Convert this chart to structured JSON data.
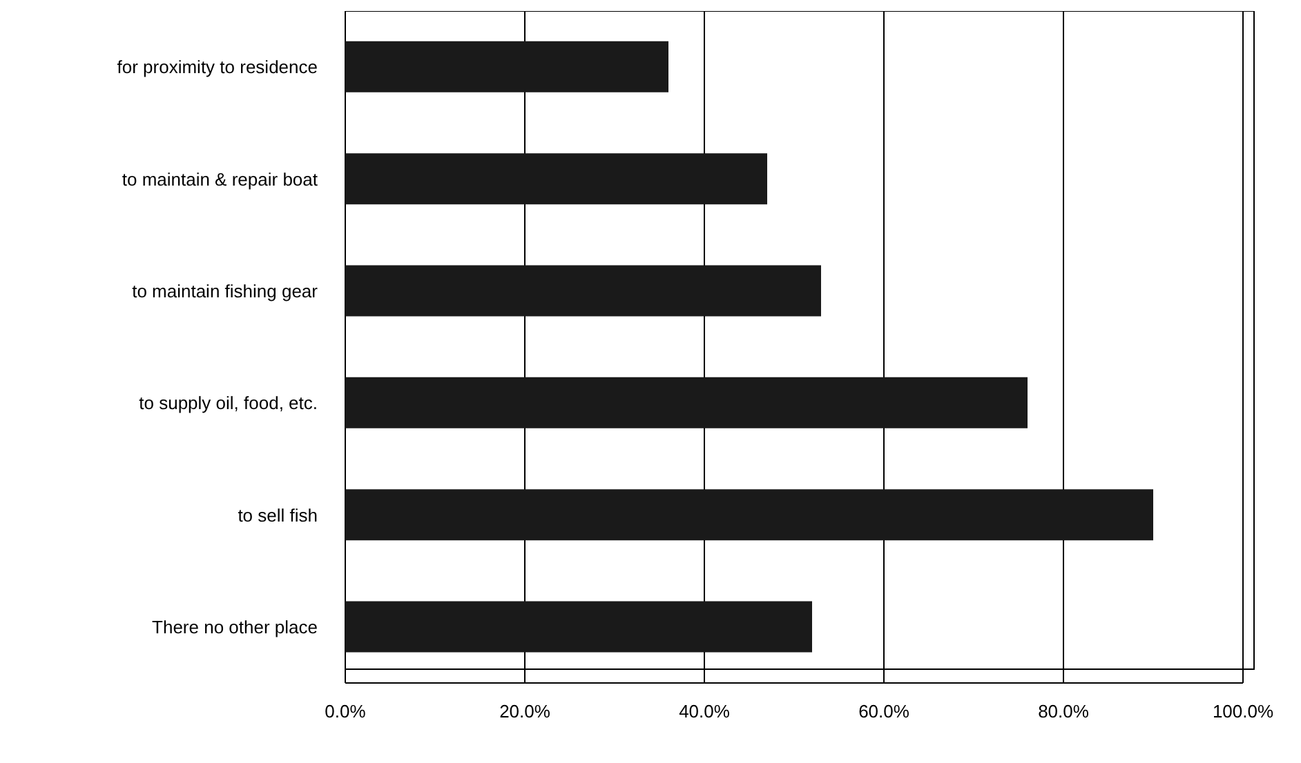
{
  "chart_data": {
    "type": "bar",
    "orientation": "horizontal",
    "categories": [
      "for proximity to residence",
      "to maintain & repair boat",
      "to maintain fishing gear",
      "to supply oil, food, etc.",
      "to sell fish",
      "There no other place"
    ],
    "values": [
      36,
      47,
      53,
      76,
      90,
      52
    ],
    "color": "#1a1a1a",
    "xlim": [
      0,
      100
    ],
    "xticks": [
      {
        "value": 0,
        "label": "0.0%"
      },
      {
        "value": 20,
        "label": "20.0%"
      },
      {
        "value": 40,
        "label": "40.0%"
      },
      {
        "value": 60,
        "label": "60.0%"
      },
      {
        "value": 80,
        "label": "80.0%"
      },
      {
        "value": 100,
        "label": "100.0%"
      }
    ],
    "grid": "x"
  }
}
